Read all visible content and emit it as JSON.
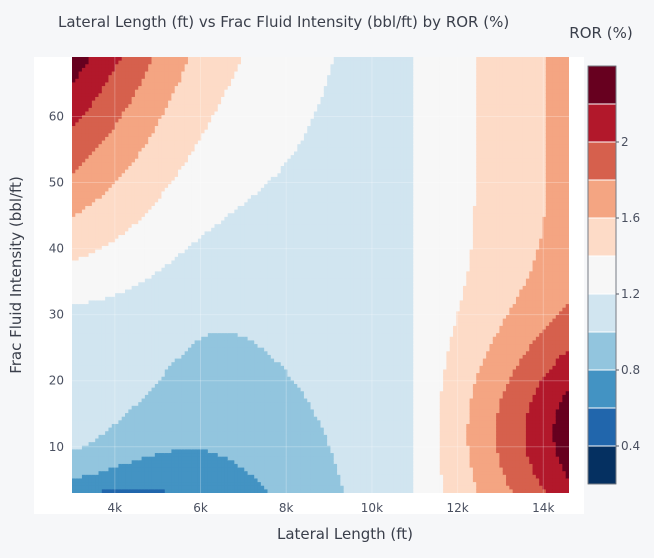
{
  "chart_data": {
    "type": "contour",
    "title": "Lateral Length (ft) vs Frac Fluid Intensity (bbl/ft) by ROR (%)",
    "xlabel": "Lateral Length (ft)",
    "ylabel": "Frac Fluid Intensity (bbl/ft)",
    "xlim": [
      3000,
      14600
    ],
    "ylim": [
      3,
      69
    ],
    "x_ticks": [
      4000,
      6000,
      8000,
      10000,
      12000,
      14000
    ],
    "x_tick_labels": [
      "4k",
      "6k",
      "8k",
      "10k",
      "12k",
      "14k"
    ],
    "y_ticks": [
      10,
      20,
      30,
      40,
      50,
      60
    ],
    "y_tick_labels": [
      "10",
      "20",
      "30",
      "40",
      "50",
      "60"
    ],
    "colorbar": {
      "title": "ROR (%)",
      "range": [
        0.2,
        2.4
      ],
      "tick_values": [
        0.4,
        0.8,
        1.2,
        1.6,
        2.0
      ],
      "tick_labels": [
        "0.4",
        "0.8",
        "1.2",
        "1.6",
        "2"
      ],
      "levels": [
        0.2,
        0.4,
        0.6,
        0.8,
        1.0,
        1.2,
        1.4,
        1.6,
        1.8,
        2.0,
        2.2,
        2.4
      ],
      "colors": [
        "#053061",
        "#2166ac",
        "#4393c3",
        "#92c5de",
        "#d1e5f0",
        "#f7f7f7",
        "#fddbc7",
        "#f4a582",
        "#d6604d",
        "#b2182b",
        "#67001f"
      ]
    },
    "legend_position": "right",
    "grid": true,
    "regions_ror_band_order": "lowest ROR at short lateral / low intensity (bottom-left), rising to highest ROR at long lateral / low intensity (bottom-right) and short lateral / high intensity (top-left)"
  }
}
